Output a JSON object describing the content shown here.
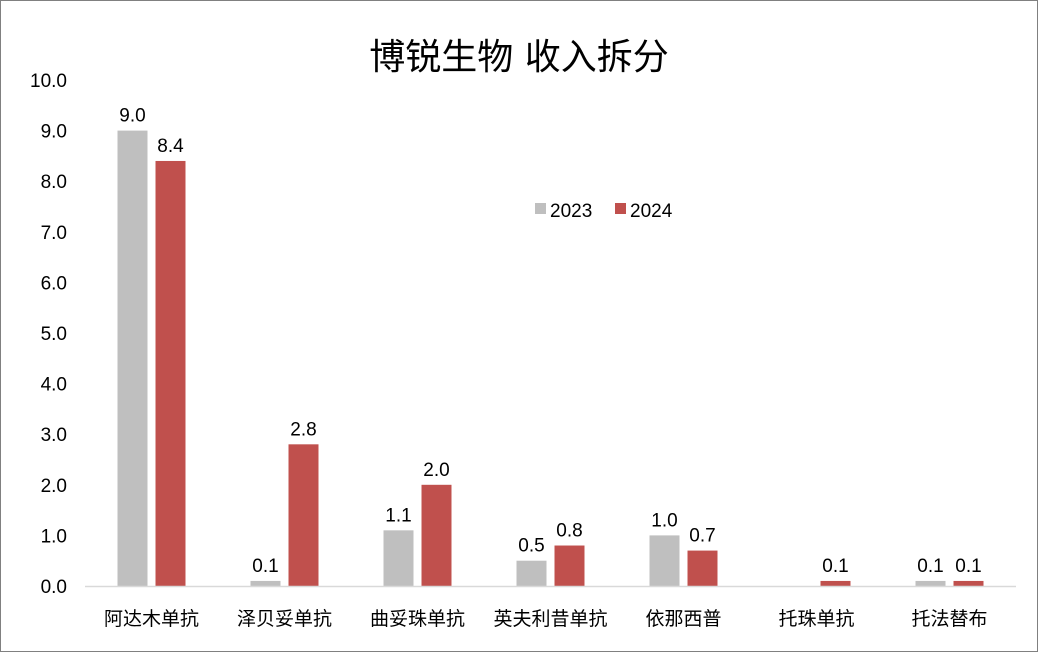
{
  "chart_data": {
    "type": "bar",
    "title": "博锐生物 收入拆分",
    "xlabel": "",
    "ylabel": "",
    "ylim": [
      0,
      10
    ],
    "yticks": [
      0,
      1,
      2,
      3,
      4,
      5,
      6,
      7,
      8,
      9,
      10
    ],
    "ytick_labels": [
      "0.0",
      "1.0",
      "2.0",
      "3.0",
      "4.0",
      "5.0",
      "6.0",
      "7.0",
      "8.0",
      "9.0",
      "10.0"
    ],
    "grid": false,
    "legend_position": "top-center",
    "categories": [
      "阿达木单抗",
      "泽贝妥单抗",
      "曲妥珠单抗",
      "英夫利昔单抗",
      "依那西普",
      "托珠单抗",
      "托法替布"
    ],
    "series": [
      {
        "name": "2023",
        "color": "#bfbfbf",
        "values": [
          9.0,
          0.1,
          1.1,
          0.5,
          1.0,
          null,
          0.1
        ],
        "labels": [
          "9.0",
          "0.1",
          "1.1",
          "0.5",
          "1.0",
          "",
          "0.1"
        ]
      },
      {
        "name": "2024",
        "color": "#c0504d",
        "values": [
          8.4,
          2.8,
          2.0,
          0.8,
          0.7,
          0.1,
          0.1
        ],
        "labels": [
          "8.4",
          "2.8",
          "2.0",
          "0.8",
          "0.7",
          "0.1",
          "0.1"
        ]
      }
    ]
  }
}
